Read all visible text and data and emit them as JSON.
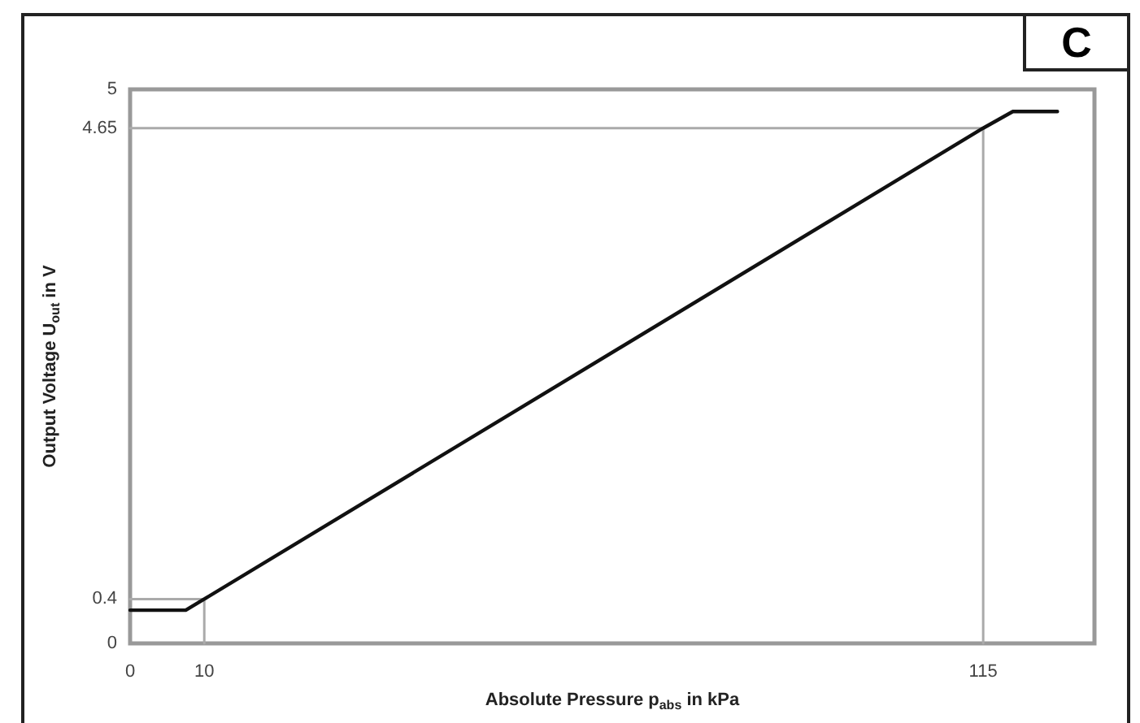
{
  "chart_data": {
    "type": "line",
    "xlabel": "Absolute Pressure p$_{abs}$ in kPa",
    "ylabel": "Output Voltage U$_{out}$ in V",
    "annotations": [
      "C"
    ],
    "x": [
      0,
      7.5,
      10,
      115,
      119,
      125
    ],
    "series": [
      {
        "color": "#aaaaaa",
        "x": [
          0,
          10,
          10
        ],
        "values": [
          0.4,
          0.4,
          0
        ]
      },
      {
        "color": "#aaaaaa",
        "x": [
          0,
          115,
          115
        ],
        "values": [
          4.65,
          4.65,
          0
        ]
      },
      {
        "color": "#111111",
        "values": [
          0.3,
          0.3,
          0.4,
          4.65,
          4.8,
          4.8
        ]
      }
    ],
    "xlim": [
      0,
      130
    ],
    "xticks": [
      0,
      10,
      115
    ],
    "ylim": [
      0,
      5
    ],
    "yticks": [
      0,
      0.4,
      4.65,
      5
    ],
    "grid": false,
    "marker": "none",
    "line_style": "solid"
  }
}
